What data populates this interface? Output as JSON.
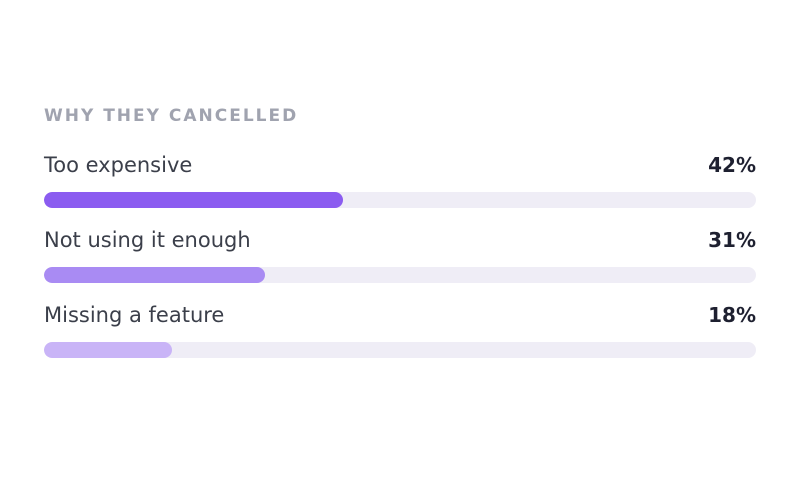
{
  "title": "WHY THEY CANCELLED",
  "chart_data": {
    "type": "bar",
    "orientation": "horizontal",
    "title": "WHY THEY CANCELLED",
    "categories": [
      "Too expensive",
      "Not using it enough",
      "Missing a feature"
    ],
    "values": [
      42,
      31,
      18
    ],
    "value_labels": [
      "42%",
      "31%",
      "18%"
    ],
    "unit": "%",
    "fill_scale_max": 100,
    "bar_colors": [
      "#8b5cf0",
      "#a98bf3",
      "#c9b4f7"
    ],
    "track_color": "#efedf6",
    "grid": false,
    "legend": "none"
  }
}
